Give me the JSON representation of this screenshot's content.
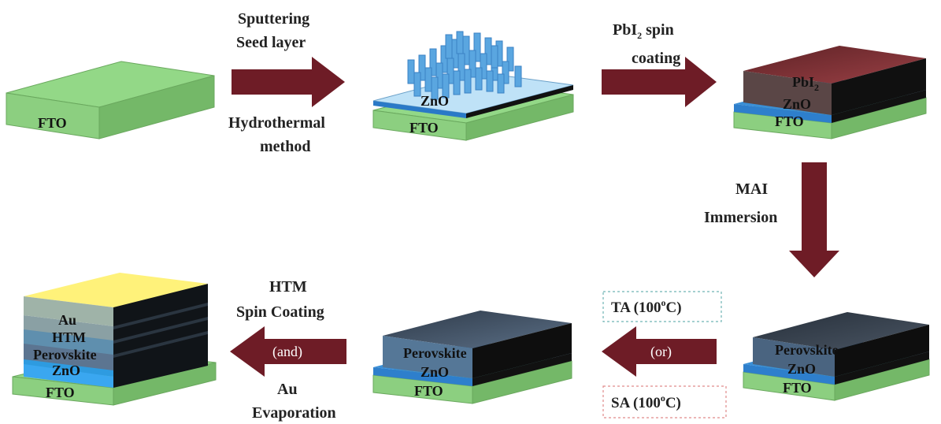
{
  "stages": {
    "s1": {
      "fto": "FTO"
    },
    "s2": {
      "zno": "ZnO",
      "fto": "FTO"
    },
    "s3": {
      "pbi_main": "PbI",
      "pbi_sub": "2",
      "zno": "ZnO",
      "fto": "FTO"
    },
    "s4": {
      "perovskite": "Perovskite",
      "zno": "ZnO",
      "fto": "FTO"
    },
    "s5": {
      "perovskite": "Perovskite",
      "zno": "ZnO",
      "fto": "FTO"
    },
    "s6": {
      "au": "Au",
      "htm": "HTM",
      "perovskite": "Perovskite",
      "zno": "ZnO",
      "fto": "FTO"
    }
  },
  "steps": {
    "a1_top1": "Sputtering",
    "a1_top2": "Seed layer",
    "a1_bot1": "Hydrothermal",
    "a1_bot2": "method",
    "a2_top1_main": "PbI",
    "a2_top1_sub": "2",
    "a2_top1_rest": " spin",
    "a2_top2": "coating",
    "a3_1": "MAI",
    "a3_2": "Immersion",
    "a4_inside": "(or)",
    "a4_ta_main": "TA (100",
    "a4_ta_sup": "o",
    "a4_ta_end": "C)",
    "a4_sa_main": "SA (100",
    "a4_sa_sup": "o",
    "a4_sa_end": "C)",
    "a5_top1": "HTM",
    "a5_top2": "Spin Coating",
    "a5_inside": "(and)",
    "a5_bot1": "Au",
    "a5_bot2": "Evaporation"
  },
  "colors": {
    "arrow": "#6e1c26",
    "fto": "#8cd47e",
    "zno": "#3a8fd6",
    "pbi2": "#7a2a2e",
    "perovskite": "#4e6b8c",
    "au": "#fff27a",
    "htm": "#5f8fae",
    "ta_box": "#6fb3b3",
    "sa_box": "#e08a8a"
  }
}
